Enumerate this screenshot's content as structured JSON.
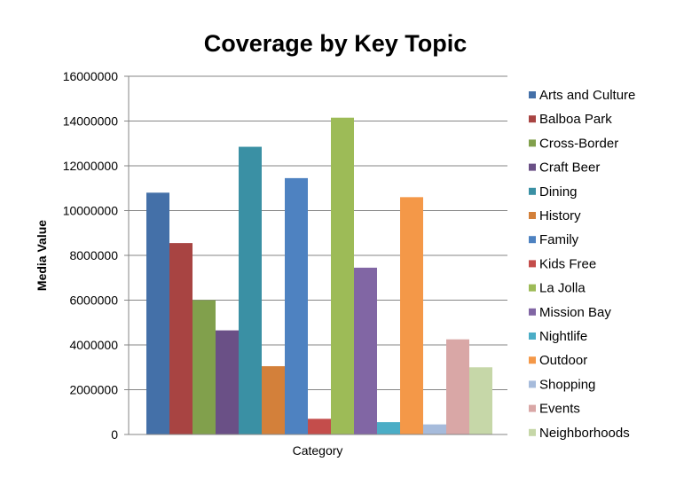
{
  "chart_data": {
    "type": "bar",
    "title": "Coverage by Key Topic",
    "xlabel": "Category",
    "ylabel": "Media Value",
    "ylim": [
      0,
      16000000
    ],
    "yticks": [
      "0",
      "2000000",
      "4000000",
      "6000000",
      "8000000",
      "10000000",
      "12000000",
      "14000000",
      "16000000"
    ],
    "grid": true,
    "legend_position": "right",
    "series": [
      {
        "name": "Arts and Culture",
        "value": 10800000,
        "color": "#4470A8"
      },
      {
        "name": "Balboa Park",
        "value": 8550000,
        "color": "#A84442"
      },
      {
        "name": "Cross-Border",
        "value": 6000000,
        "color": "#81A04C"
      },
      {
        "name": "Craft Beer",
        "value": 4650000,
        "color": "#6A5086"
      },
      {
        "name": "Dining",
        "value": 12850000,
        "color": "#3A90A4"
      },
      {
        "name": "History",
        "value": 3050000,
        "color": "#D3803A"
      },
      {
        "name": "Family",
        "value": 11450000,
        "color": "#4E82C1"
      },
      {
        "name": "Kids Free",
        "value": 700000,
        "color": "#C44D4B"
      },
      {
        "name": "La Jolla",
        "value": 14150000,
        "color": "#9DBB57"
      },
      {
        "name": "Mission Bay",
        "value": 7450000,
        "color": "#8166A4"
      },
      {
        "name": "Nightlife",
        "value": 550000,
        "color": "#4BADC6"
      },
      {
        "name": "Outdoor",
        "value": 10600000,
        "color": "#F49848"
      },
      {
        "name": "Shopping",
        "value": 450000,
        "color": "#A6BBDB"
      },
      {
        "name": "Events",
        "value": 4250000,
        "color": "#D9A7A6"
      },
      {
        "name": "Neighborhoods",
        "value": 3000000,
        "color": "#C6D7A8"
      }
    ]
  }
}
